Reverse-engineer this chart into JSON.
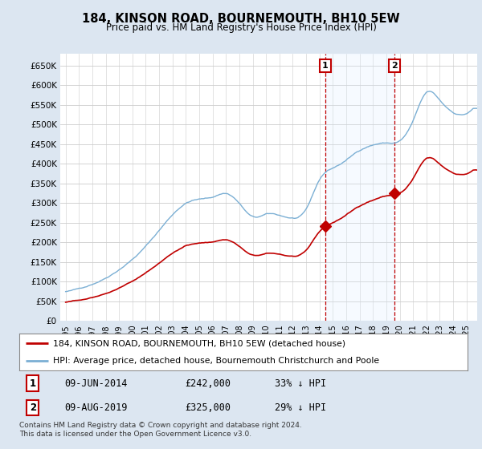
{
  "title": "184, KINSON ROAD, BOURNEMOUTH, BH10 5EW",
  "subtitle": "Price paid vs. HM Land Registry's House Price Index (HPI)",
  "ylim": [
    0,
    680000
  ],
  "yticks": [
    0,
    50000,
    100000,
    150000,
    200000,
    250000,
    300000,
    350000,
    400000,
    450000,
    500000,
    550000,
    600000,
    650000
  ],
  "ytick_labels": [
    "£0",
    "£50K",
    "£100K",
    "£150K",
    "£200K",
    "£250K",
    "£300K",
    "£350K",
    "£400K",
    "£450K",
    "£500K",
    "£550K",
    "£600K",
    "£650K"
  ],
  "hpi_color": "#7bafd4",
  "sale_color": "#c00000",
  "shade_color": "#ddeeff",
  "m1_x": 2014.44,
  "m1_y": 242000,
  "m1_label": "1",
  "m1_date_str": "09-JUN-2014",
  "m1_price": 242000,
  "m1_pct": "33% ↓ HPI",
  "m2_x": 2019.61,
  "m2_y": 325000,
  "m2_label": "2",
  "m2_date_str": "09-AUG-2019",
  "m2_price": 325000,
  "m2_pct": "29% ↓ HPI",
  "legend_line1": "184, KINSON ROAD, BOURNEMOUTH, BH10 5EW (detached house)",
  "legend_line2": "HPI: Average price, detached house, Bournemouth Christchurch and Poole",
  "footnote": "Contains HM Land Registry data © Crown copyright and database right 2024.\nThis data is licensed under the Open Government Licence v3.0.",
  "bg_color": "#dce6f1",
  "plot_bg_color": "#ffffff",
  "xtick_years": [
    1995,
    1996,
    1997,
    1998,
    1999,
    2000,
    2001,
    2002,
    2003,
    2004,
    2005,
    2006,
    2007,
    2008,
    2009,
    2010,
    2011,
    2012,
    2013,
    2014,
    2015,
    2016,
    2017,
    2018,
    2019,
    2020,
    2021,
    2022,
    2023,
    2024,
    2025
  ]
}
